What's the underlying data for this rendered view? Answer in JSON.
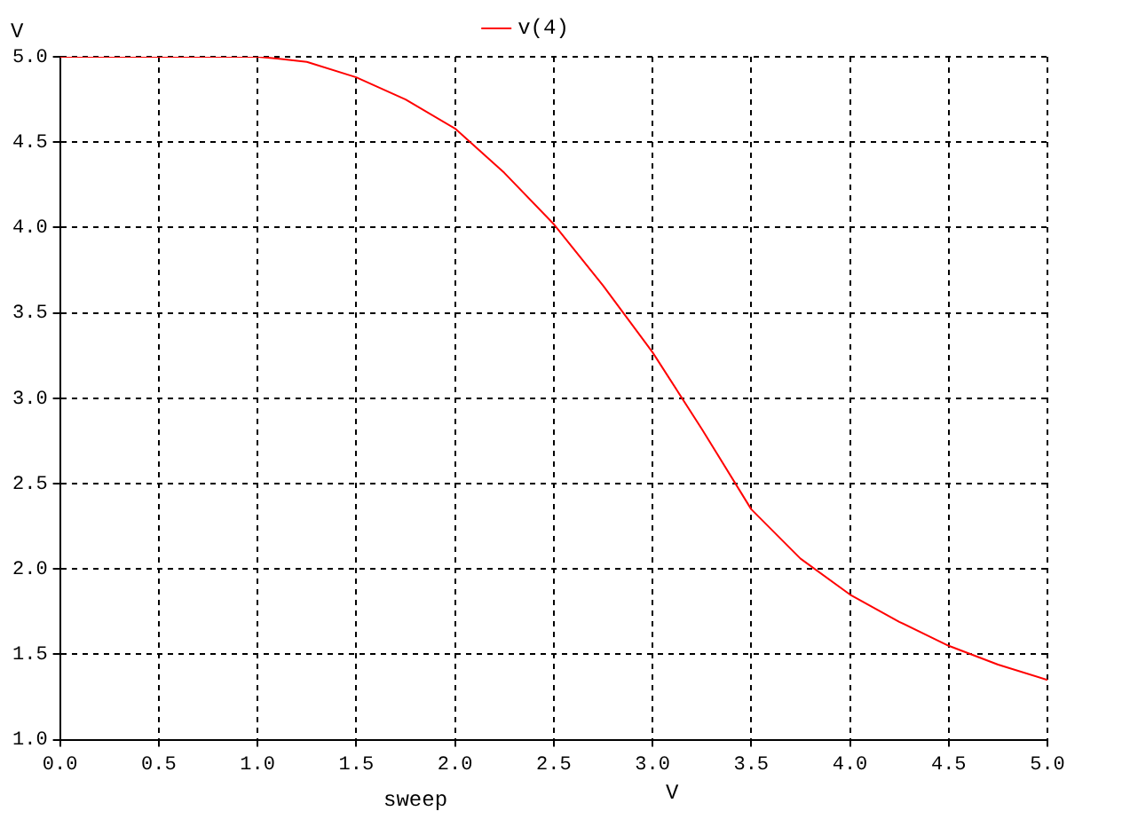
{
  "chart_data": {
    "type": "line",
    "xlabel": "sweep",
    "ylabel": "V",
    "annotations": [
      "V"
    ],
    "x": [
      0,
      0.5,
      1.0,
      1.1,
      1.25,
      1.5,
      1.75,
      2.0,
      2.25,
      2.5,
      2.75,
      3.0,
      3.25,
      3.5,
      3.75,
      4.0,
      4.25,
      4.5,
      4.75,
      5.0
    ],
    "series": [
      {
        "name": "v(4)",
        "color": "#ff0000",
        "values": [
          5,
          5,
          5,
          4.99,
          4.97,
          4.88,
          4.75,
          4.58,
          4.32,
          4.02,
          3.66,
          3.27,
          2.82,
          2.35,
          2.06,
          1.85,
          1.69,
          1.55,
          1.44,
          1.35
        ]
      }
    ],
    "xlim": [
      0,
      5
    ],
    "ylim": [
      1,
      5
    ],
    "xticks": [
      {
        "value": 0,
        "label": "0.0"
      },
      {
        "value": 0.5,
        "label": "0.5"
      },
      {
        "value": 1,
        "label": "1.0"
      },
      {
        "value": 1.5,
        "label": "1.5"
      },
      {
        "value": 2,
        "label": "2.0"
      },
      {
        "value": 2.5,
        "label": "2.5"
      },
      {
        "value": 3,
        "label": "3.0"
      },
      {
        "value": 3.5,
        "label": "3.5"
      },
      {
        "value": 4,
        "label": "4.0"
      },
      {
        "value": 4.5,
        "label": "4.5"
      },
      {
        "value": 5,
        "label": "5.0"
      }
    ],
    "yticks": [
      {
        "value": 1,
        "label": "1.0"
      },
      {
        "value": 1.5,
        "label": "1.5"
      },
      {
        "value": 2,
        "label": "2.0"
      },
      {
        "value": 2.5,
        "label": "2.5"
      },
      {
        "value": 3,
        "label": "3.0"
      },
      {
        "value": 3.5,
        "label": "3.5"
      },
      {
        "value": 4,
        "label": "4.0"
      },
      {
        "value": 4.5,
        "label": "4.5"
      },
      {
        "value": 5,
        "label": "5.0"
      }
    ],
    "grid": true,
    "legend": "top",
    "marker": "none",
    "line_style": "solid"
  }
}
